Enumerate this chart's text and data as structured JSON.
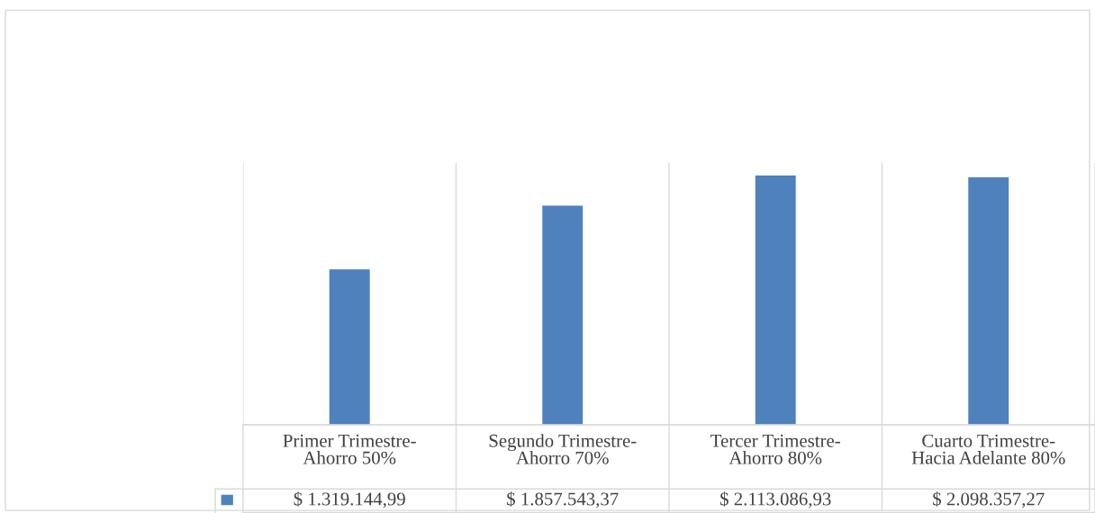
{
  "chart_data": {
    "type": "bar",
    "categories": [
      "Primer Trimestre-\nAhorro 50%",
      "Segundo Trimestre-\nAhorro 70%",
      "Tercer Trimestre-\nAhorro 80%",
      "Cuarto Trimestre-\nHacia Adelante 80%"
    ],
    "values": [
      1319144.99,
      1857543.37,
      2113086.93,
      2098357.27
    ],
    "value_labels": [
      "$ 1.319.144,99",
      "$ 1.857.543,37",
      "$ 2.113.086,93",
      "$ 2.098.357,27"
    ],
    "color": "#4f81bd",
    "grid": "x",
    "legend": false
  }
}
